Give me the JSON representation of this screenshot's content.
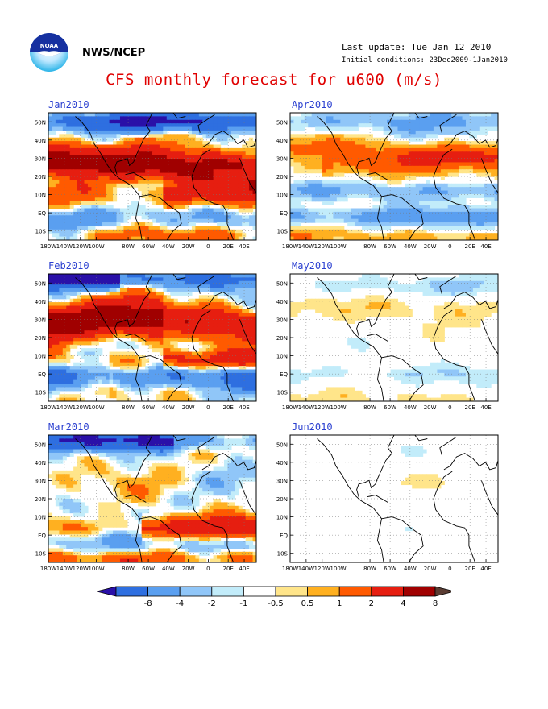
{
  "header": {
    "org": "NWS/NCEP",
    "last_update": "Last update: Tue Jan 12 2010",
    "initial_conditions": "Initial conditions: 23Dec2009-1Jan2010",
    "logo_icon": "noaa-logo-icon"
  },
  "title": "CFS monthly forecast for u600 (m/s)",
  "panels": [
    {
      "label": "Jan2010",
      "intensity": 1.0,
      "seed": 11
    },
    {
      "label": "Apr2010",
      "intensity": 0.6,
      "seed": 23
    },
    {
      "label": "Feb2010",
      "intensity": 1.05,
      "seed": 37
    },
    {
      "label": "May2010",
      "intensity": 0.38,
      "seed": 41
    },
    {
      "label": "Mar2010",
      "intensity": 1.0,
      "seed": 53
    },
    {
      "label": "Jun2010",
      "intensity": 0.22,
      "seed": 67
    }
  ],
  "axes": {
    "lon_labels": [
      "180W",
      "140W",
      "120W",
      "100W",
      "80W",
      "60W",
      "40W",
      "20W",
      "0",
      "20E",
      "40E"
    ],
    "lat_labels": [
      "50N",
      "40N",
      "30N",
      "20N",
      "10N",
      "EQ",
      "10S"
    ]
  },
  "colorbar": {
    "labels": [
      "-8",
      "-4",
      "-2",
      "-1",
      "-0.5",
      "0.5",
      "1",
      "2",
      "4",
      "8"
    ],
    "colors": [
      "#2a10a8",
      "#2e6fe0",
      "#5a9ff0",
      "#90c6f8",
      "#c2ecfa",
      "#ffffff",
      "#ffe58a",
      "#ffb020",
      "#ff5a00",
      "#e61e10",
      "#a00000",
      "#5a3c32"
    ]
  }
}
